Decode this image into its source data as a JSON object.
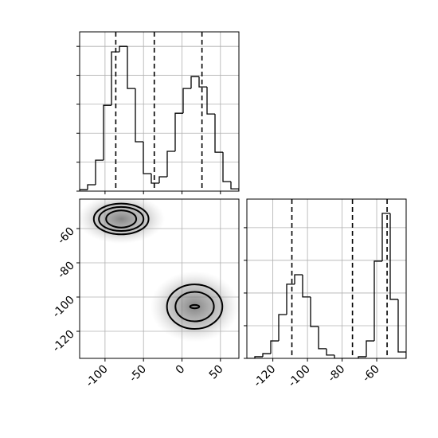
{
  "chart_data": [
    {
      "type": "histogram",
      "bins": [
        -133,
        -122.65,
        -112.3,
        -101.95,
        -91.6,
        -81.25,
        -70.9,
        -60.55,
        -50.2,
        -39.85,
        -29.5,
        -19.15,
        -8.8,
        1.55,
        11.9,
        22.25,
        32.6,
        42.95,
        53.3,
        63.65,
        74
      ],
      "counts": [
        10,
        44,
        214,
        593,
        962,
        1000,
        709,
        341,
        121,
        55,
        99,
        275,
        538,
        709,
        791,
        720,
        533,
        269,
        66,
        16
      ],
      "quantiles": [
        -86,
        -36,
        26
      ],
      "xlim": [
        -133,
        74
      ],
      "xticks": [
        -100,
        -50,
        0,
        50
      ],
      "ylim": [
        0,
        1100
      ],
      "yticks": [
        0,
        200,
        400,
        600,
        800,
        1000
      ],
      "grid": true
    },
    {
      "type": "contour",
      "xlim": [
        -133,
        74
      ],
      "xticks": [
        -100,
        -50,
        0,
        50
      ],
      "ylim": [
        -135.8,
        -42.8
      ],
      "yticks": [
        -120,
        -100,
        -80,
        -60
      ],
      "grid": true,
      "contours": [
        {
          "cx": -79,
          "cy": -54.4,
          "rx": 35.6,
          "ry": 9
        },
        {
          "cx": -79,
          "cy": -54.4,
          "rx": 29,
          "ry": 7
        },
        {
          "cx": -79,
          "cy": -54.4,
          "rx": 19.6,
          "ry": 5
        },
        {
          "cx": 16.5,
          "cy": -105.6,
          "rx": 36,
          "ry": 13
        },
        {
          "cx": 16.5,
          "cy": -105.6,
          "rx": 25,
          "ry": 8.6
        },
        {
          "cx": 16.5,
          "cy": -105.6,
          "rx": 6,
          "ry": 1
        }
      ]
    },
    {
      "type": "histogram",
      "bins": [
        -135,
        -130.4,
        -125.8,
        -121.2,
        -116.6,
        -112,
        -107.4,
        -102.8,
        -98.2,
        -93.6,
        -89,
        -84.4,
        -79.8,
        -75.2,
        -70.6,
        -66,
        -61.4,
        -56.8,
        -52.2,
        -47.6,
        -43
      ],
      "counts": [
        0,
        10,
        29,
        107,
        268,
        454,
        512,
        376,
        195,
        59,
        20,
        0,
        0,
        0,
        10,
        107,
        595,
        888,
        361,
        39
      ],
      "quantiles": [
        -109,
        -74,
        -54
      ],
      "xlim": [
        -135,
        -43
      ],
      "xticks": [
        -120,
        -100,
        -80,
        -60
      ],
      "ylim": [
        0,
        975
      ],
      "yticks": [
        0,
        200,
        400,
        600,
        800
      ],
      "grid": true
    }
  ]
}
